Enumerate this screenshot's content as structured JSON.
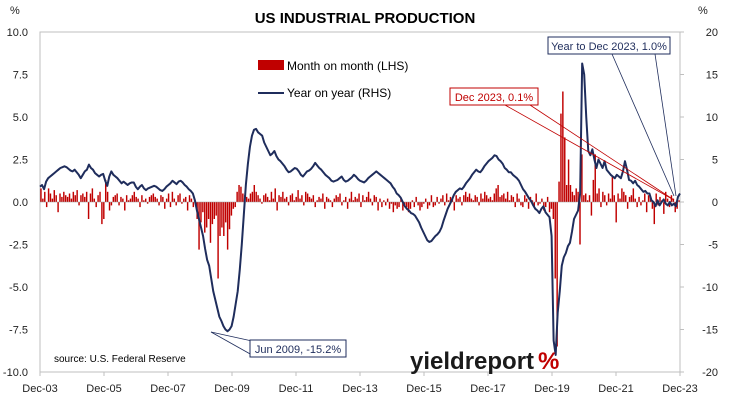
{
  "chart_data": {
    "type": "bar+line",
    "title": "US INDUSTRIAL PRODUCTION",
    "left_unit": "%",
    "right_unit": "%",
    "left_axis": {
      "min": -10,
      "max": 10,
      "ticks": [
        10.0,
        7.5,
        5.0,
        2.5,
        0.0,
        -2.5,
        -5.0,
        -7.5,
        -10.0
      ],
      "tick_labels": [
        "10.0",
        "7.5",
        "5.0",
        "2.5",
        "0.0",
        "-2.5",
        "-5.0",
        "-7.5",
        "-10.0"
      ]
    },
    "right_axis": {
      "min": -20,
      "max": 20,
      "ticks": [
        20,
        15,
        10,
        5,
        0,
        -5,
        -10,
        -15,
        -20
      ],
      "tick_labels": [
        "20",
        "15",
        "10",
        "5",
        "0",
        "-5",
        "-10",
        "-15",
        "-20"
      ]
    },
    "x_axis": {
      "start": "Dec-03",
      "end": "Dec-23",
      "tick_labels": [
        "Dec-03",
        "Dec-05",
        "Dec-07",
        "Dec-09",
        "Dec-11",
        "Dec-13",
        "Dec-15",
        "Dec-17",
        "Dec-19",
        "Dec-21",
        "Dec-23"
      ]
    },
    "legend": {
      "placement": "top-center",
      "bar_label": "Month on month (LHS)",
      "line_label": "Year on year (RHS)"
    },
    "grid": false,
    "colors": {
      "bar": "#c00000",
      "line": "#1f2d5c",
      "frame": "#bfbfbf"
    },
    "annotations": [
      {
        "text": "Year to Dec 2023, 1.0%",
        "date": "Dec-23",
        "value": 1.0,
        "axis": "right",
        "color": "#1f2d5c"
      },
      {
        "text": "Dec 2023, 0.1%",
        "date": "Dec-23",
        "value": 0.1,
        "axis": "left",
        "color": "#c00000"
      },
      {
        "text": "Jun 2009, -15.2%",
        "date": "Jun-09",
        "value": -15.2,
        "axis": "right",
        "color": "#1f2d5c"
      }
    ],
    "source": "source: U.S. Federal Reserve",
    "series": [
      {
        "name": "Month on month (LHS)",
        "kind": "bar",
        "axis": "left",
        "values": [
          0.8,
          0.2,
          0.6,
          -0.3,
          0.8,
          0.5,
          0.2,
          0.7,
          0.4,
          -0.6,
          0.5,
          0.3,
          0.6,
          0.4,
          0.3,
          0.5,
          0.2,
          0.6,
          0.4,
          0.7,
          -0.2,
          0.4,
          0.5,
          0.3,
          0.6,
          -1.0,
          0.5,
          0.8,
          0.2,
          -0.3,
          0.4,
          0.6,
          -1.3,
          -1.0,
          1.3,
          0.6,
          -0.5,
          -0.2,
          0.3,
          0.4,
          0.5,
          -0.2,
          0.3,
          0.2,
          -0.5,
          0.4,
          0.1,
          0.2,
          0.4,
          0.6,
          0.3,
          0.2,
          -0.3,
          0.4,
          0.1,
          0.2,
          -0.1,
          0.3,
          0.4,
          0.5,
          0.3,
          0.2,
          -0.2,
          0.4,
          0.3,
          -0.4,
          0.2,
          0.5,
          -0.3,
          0.6,
          0.2,
          -0.2,
          0.4,
          0.5,
          -0.1,
          0.2,
          0.3,
          -0.5,
          0.4,
          0.2,
          -0.3,
          0.1,
          -1.0,
          -2.8,
          -1.2,
          -0.6,
          -1.8,
          -1.5,
          -1.0,
          -2.4,
          -1.3,
          -1.0,
          -0.8,
          -4.5,
          -2.0,
          -1.5,
          -2.0,
          -1.2,
          -2.8,
          -1.6,
          -0.8,
          -0.4,
          -0.3,
          0.6,
          1.0,
          0.9,
          0.5,
          0.4,
          0.3,
          0.2,
          0.5,
          0.6,
          1.0,
          0.6,
          0.4,
          0.2,
          -0.1,
          0.4,
          0.5,
          0.3,
          0.1,
          0.6,
          0.2,
          0.8,
          -0.5,
          0.4,
          0.3,
          0.6,
          0.2,
          0.3,
          -0.2,
          0.4,
          0.5,
          0.1,
          0.3,
          0.7,
          0.2,
          0.4,
          -0.2,
          0.6,
          0.5,
          0.3,
          0.2,
          0.4,
          -0.3,
          0.1,
          0.3,
          0.2,
          0.5,
          -0.4,
          0.3,
          0.2,
          0.1,
          -0.3,
          0.2,
          0.4,
          0.3,
          0.5,
          -0.2,
          0.1,
          0.3,
          -0.4,
          0.2,
          0.6,
          0.1,
          0.3,
          0.2,
          0.5,
          -0.3,
          0.4,
          0.1,
          0.3,
          0.6,
          0.2,
          -0.2,
          0.4,
          0.3,
          -0.5,
          0.2,
          -0.3,
          0.1,
          -0.2,
          0.2,
          -0.4,
          -0.1,
          -0.6,
          -0.2,
          -0.4,
          -0.3,
          0.2,
          -0.5,
          -0.2,
          -0.3,
          -0.6,
          -0.4,
          0.1,
          -0.3,
          0.3,
          -0.2,
          -0.5,
          -0.3,
          -0.1,
          0.2,
          -0.4,
          -0.2,
          0.4,
          -0.3,
          -0.2,
          0.3,
          -0.1,
          0.2,
          0.4,
          -0.2,
          0.5,
          0.1,
          0.3,
          0.2,
          -0.5,
          0.4,
          0.2,
          0.3,
          -0.2,
          0.4,
          0.6,
          0.3,
          0.5,
          0.2,
          0.1,
          0.4,
          0.3,
          -0.2,
          0.5,
          0.2,
          0.6,
          0.4,
          0.2,
          0.3,
          0.1,
          0.5,
          0.8,
          1.0,
          0.3,
          0.4,
          0.5,
          0.2,
          0.6,
          0.1,
          0.4,
          0.3,
          -0.3,
          0.5,
          0.2,
          -0.2,
          -0.3,
          0.4,
          0.2,
          -0.4,
          0.3,
          0.1,
          -0.3,
          0.5,
          -0.2,
          -0.1,
          0.2,
          -0.5,
          -0.3,
          0.3,
          -0.6,
          -0.4,
          -1.0,
          -4.5,
          -8.5,
          1.2,
          5.2,
          6.5,
          3.8,
          1.0,
          2.5,
          1.0,
          0.6,
          0.4,
          0.8,
          0.6,
          -2.5,
          2.8,
          0.4,
          0.5,
          0.1,
          0.4,
          -0.8,
          1.3,
          2.8,
          0.5,
          0.8,
          -0.3,
          0.6,
          0.4,
          -0.2,
          0.5,
          0.2,
          1.5,
          0.4,
          -1.2,
          0.5,
          0.2,
          0.8,
          0.6,
          0.4,
          -0.4,
          0.3,
          0.4,
          0.8,
          0.2,
          -0.3,
          0.3,
          -0.2,
          0.1,
          0.5,
          -0.6,
          0.4,
          0.3,
          -0.4,
          -1.3,
          0.5,
          -0.2,
          0.3,
          0.1,
          -0.7,
          0.6,
          0.2,
          -0.3,
          0.4,
          0.2,
          -0.6,
          -0.4,
          0.1
        ]
      },
      {
        "name": "Year on year (RHS)",
        "kind": "line",
        "axis": "right",
        "values": [
          1.8,
          2.0,
          1.5,
          2.4,
          2.8,
          3.0,
          3.2,
          3.4,
          3.6,
          3.8,
          4.0,
          4.1,
          4.2,
          4.1,
          3.9,
          3.7,
          3.6,
          3.8,
          3.5,
          3.2,
          2.8,
          3.2,
          3.6,
          3.8,
          4.4,
          4.0,
          3.8,
          3.4,
          3.2,
          3.0,
          3.2,
          3.3,
          2.5,
          1.9,
          3.0,
          3.6,
          3.2,
          3.0,
          2.8,
          2.5,
          2.2,
          2.4,
          2.2,
          2.0,
          2.2,
          2.3,
          2.3,
          1.8,
          1.5,
          1.8,
          2.0,
          1.6,
          1.4,
          1.6,
          1.7,
          1.8,
          1.9,
          1.8,
          1.6,
          1.4,
          1.3,
          1.5,
          1.8,
          2.0,
          2.2,
          2.5,
          2.3,
          2.1,
          2.4,
          2.5,
          2.3,
          2.0,
          1.8,
          1.5,
          1.3,
          1.0,
          0.2,
          -1.0,
          -2.0,
          -3.0,
          -4.0,
          -5.5,
          -6.8,
          -7.5,
          -9.0,
          -10.5,
          -11.5,
          -12.5,
          -13.5,
          -14.0,
          -14.6,
          -15.0,
          -15.2,
          -15.0,
          -14.6,
          -13.5,
          -12.0,
          -10.5,
          -8.0,
          -5.0,
          -1.5,
          2.0,
          4.5,
          6.5,
          7.8,
          8.5,
          8.6,
          8.2,
          8.0,
          7.8,
          7.0,
          6.5,
          6.0,
          5.5,
          5.7,
          6.0,
          5.4,
          5.0,
          4.8,
          4.5,
          4.2,
          3.8,
          3.5,
          3.6,
          3.8,
          4.0,
          3.9,
          3.6,
          3.2,
          3.0,
          3.3,
          3.6,
          3.7,
          3.9,
          4.2,
          4.6,
          4.3,
          4.0,
          3.8,
          3.5,
          3.2,
          3.0,
          2.8,
          2.5,
          2.4,
          2.5,
          2.6,
          2.8,
          3.0,
          2.6,
          2.4,
          2.5,
          2.7,
          2.9,
          3.2,
          3.0,
          2.7,
          2.5,
          2.4,
          2.3,
          2.5,
          2.8,
          3.0,
          3.2,
          3.4,
          3.6,
          3.4,
          3.2,
          3.0,
          2.8,
          2.6,
          2.4,
          2.2,
          1.8,
          1.5,
          1.0,
          0.8,
          0.5,
          0.0,
          -0.5,
          -0.8,
          -1.0,
          -1.3,
          -1.4,
          -1.6,
          -2.0,
          -2.4,
          -3.0,
          -3.5,
          -4.0,
          -4.5,
          -4.7,
          -4.6,
          -4.3,
          -4.0,
          -3.8,
          -3.5,
          -3.0,
          -2.2,
          -1.5,
          -0.8,
          -0.3,
          0.2,
          0.8,
          1.2,
          1.4,
          1.6,
          1.5,
          1.8,
          2.2,
          2.5,
          2.8,
          3.2,
          3.5,
          3.8,
          3.6,
          3.5,
          3.8,
          4.2,
          4.5,
          4.8,
          5.0,
          5.2,
          5.5,
          5.4,
          5.0,
          4.8,
          4.5,
          4.0,
          3.8,
          3.5,
          3.5,
          3.2,
          3.0,
          2.8,
          2.5,
          2.0,
          1.5,
          1.2,
          0.8,
          0.4,
          0.1,
          -0.4,
          -0.8,
          -1.0,
          -1.3,
          -0.8,
          -0.5,
          -1.2,
          -1.5,
          -1.8,
          -4.0,
          -16.3,
          -18.0,
          -13.0,
          -10.5,
          -7.5,
          -6.5,
          -6.0,
          -5.2,
          -4.8,
          -3.5,
          -2.0,
          -1.5,
          -1.0,
          1.0,
          16.3,
          15.0,
          10.0,
          6.0,
          5.5,
          6.2,
          5.0,
          4.0,
          5.0,
          4.5,
          4.0,
          4.8,
          3.8,
          3.5,
          3.2,
          3.0,
          2.8,
          3.2,
          3.0,
          2.8,
          3.6,
          4.8,
          3.8,
          2.6,
          2.5,
          2.2,
          2.5,
          2.0,
          1.8,
          1.5,
          1.2,
          1.3,
          1.0,
          1.0,
          0.2,
          0.0,
          -0.5,
          0.2,
          -0.4,
          0.0,
          0.3,
          -0.2,
          -0.4,
          0.0,
          -0.4,
          -0.2,
          -0.5,
          0.6,
          1.0
        ]
      }
    ]
  },
  "branding": {
    "logo_text": "yieldreport",
    "logo_mark": "%"
  }
}
